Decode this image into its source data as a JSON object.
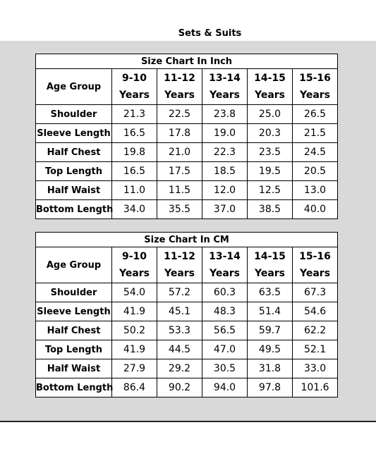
{
  "title": "Sets & Suits",
  "row_header": "Age Group",
  "columns": [
    {
      "range": "9-10",
      "unit": "Years"
    },
    {
      "range": "11-12",
      "unit": "Years"
    },
    {
      "range": "13-14",
      "unit": "Years"
    },
    {
      "range": "14-15",
      "unit": "Years"
    },
    {
      "range": "15-16",
      "unit": "Years"
    }
  ],
  "inch_table": {
    "caption": "Size Chart In Inch",
    "rows": [
      {
        "label": "Shoulder",
        "values": [
          "21.3",
          "22.5",
          "23.8",
          "25.0",
          "26.5"
        ]
      },
      {
        "label": "Sleeve Length",
        "values": [
          "16.5",
          "17.8",
          "19.0",
          "20.3",
          "21.5"
        ]
      },
      {
        "label": "Half Chest",
        "values": [
          "19.8",
          "21.0",
          "22.3",
          "23.5",
          "24.5"
        ]
      },
      {
        "label": "Top Length",
        "values": [
          "16.5",
          "17.5",
          "18.5",
          "19.5",
          "20.5"
        ]
      },
      {
        "label": "Half Waist",
        "values": [
          "11.0",
          "11.5",
          "12.0",
          "12.5",
          "13.0"
        ]
      },
      {
        "label": "Bottom Length",
        "values": [
          "34.0",
          "35.5",
          "37.0",
          "38.5",
          "40.0"
        ]
      }
    ]
  },
  "cm_table": {
    "caption": "Size Chart In CM",
    "rows": [
      {
        "label": "Shoulder",
        "values": [
          "54.0",
          "57.2",
          "60.3",
          "63.5",
          "67.3"
        ]
      },
      {
        "label": "Sleeve Length",
        "values": [
          "41.9",
          "45.1",
          "48.3",
          "51.4",
          "54.6"
        ]
      },
      {
        "label": "Half Chest",
        "values": [
          "50.2",
          "53.3",
          "56.5",
          "59.7",
          "62.2"
        ]
      },
      {
        "label": "Top Length",
        "values": [
          "41.9",
          "44.5",
          "47.0",
          "49.5",
          "52.1"
        ]
      },
      {
        "label": "Half Waist",
        "values": [
          "27.9",
          "29.2",
          "30.5",
          "31.8",
          "33.0"
        ]
      },
      {
        "label": "Bottom Length",
        "values": [
          "86.4",
          "90.2",
          "94.0",
          "97.8",
          "101.6"
        ]
      }
    ]
  }
}
